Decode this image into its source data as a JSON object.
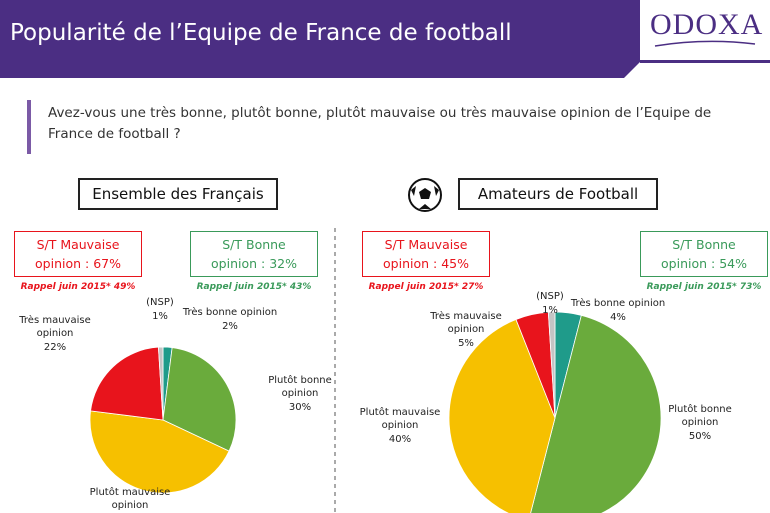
{
  "header": {
    "title": "Popularité de l’Equipe de France de football",
    "logo": "ODOXA"
  },
  "question": "Avez-vous une très bonne, plutôt bonne, plutôt mauvaise ou très mauvaise opinion de l’Equipe de France de football ?",
  "chart_data": [
    {
      "type": "pie",
      "title": "Ensemble des Français",
      "summaries": [
        {
          "text": "S/T Mauvaise opinion : 67%",
          "recall": "Rappel juin 2015* 49%",
          "color": "#e8141c"
        },
        {
          "text": "S/T Bonne opinion : 32%",
          "recall": "Rappel juin 2015* 43%",
          "color": "#3a9a5a"
        }
      ],
      "categories": [
        "Très bonne opinion",
        "Plutôt bonne opinion",
        "Plutôt mauvaise opinion",
        "Très mauvaise opinion",
        "(NSP)"
      ],
      "values": [
        2,
        30,
        45,
        22,
        1
      ],
      "value_labels": [
        "2%",
        "30%",
        null,
        "22%",
        "1%"
      ],
      "colors": [
        "#1f9b8a",
        "#6aab3c",
        "#f6c000",
        "#e8141c",
        "#c4c4c4"
      ]
    },
    {
      "type": "pie",
      "title": "Amateurs de Football",
      "summaries": [
        {
          "text": "S/T Mauvaise opinion : 45%",
          "recall": "Rappel juin 2015* 27%",
          "color": "#e8141c"
        },
        {
          "text": "S/T Bonne opinion : 54%",
          "recall": "Rappel juin 2015* 73%",
          "color": "#3a9a5a"
        }
      ],
      "categories": [
        "Très bonne opinion",
        "Plutôt bonne opinion",
        "Plutôt mauvaise opinion",
        "Très mauvaise opinion",
        "(NSP)"
      ],
      "values": [
        4,
        50,
        40,
        5,
        1
      ],
      "value_labels": [
        "4%",
        "50%",
        "40%",
        "5%",
        "1%"
      ],
      "colors": [
        "#1f9b8a",
        "#6aab3c",
        "#f6c000",
        "#e8141c",
        "#c4c4c4"
      ]
    }
  ]
}
